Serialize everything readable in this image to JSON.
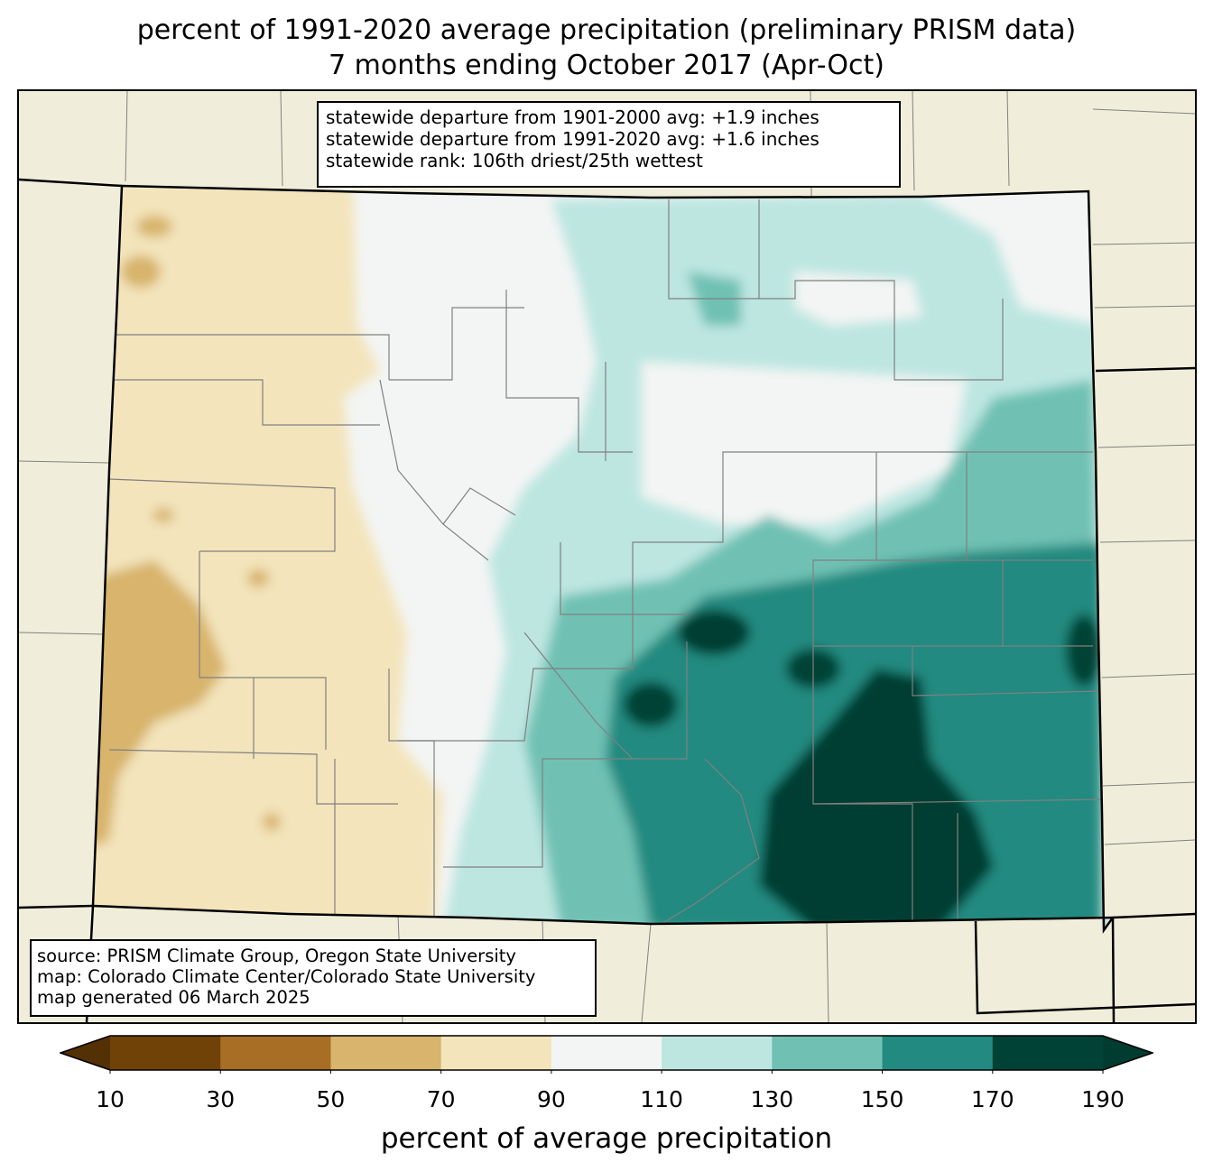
{
  "title": {
    "line1": "percent of 1991-2020 average precipitation (preliminary PRISM data)",
    "line2": "7 months ending October 2017 (Apr-Oct)"
  },
  "stats": {
    "line1": "statewide departure from 1901-2000 avg: +1.9 inches",
    "line2": "statewide departure from 1991-2020 avg: +1.6 inches",
    "line3": "statewide rank: 106th driest/25th wettest"
  },
  "source": {
    "line1": "source: PRISM Climate Group, Oregon State University",
    "line2": "map: Colorado Climate Center/Colorado State University",
    "line3": "map generated 06 March 2025"
  },
  "colorbar": {
    "label": "percent of average precipitation",
    "ticks": [
      "10",
      "30",
      "50",
      "70",
      "90",
      "110",
      "130",
      "150",
      "170",
      "190"
    ],
    "colors": [
      "#704208",
      "#a86e26",
      "#d8b46c",
      "#f3e4bb",
      "#f3f5f4",
      "#bde6e1",
      "#70c1b4",
      "#228a80",
      "#004236"
    ],
    "under_color": "#543005",
    "over_color": "#003c30"
  },
  "map": {
    "background_color": "#f0eedb",
    "state_outline_color": "#000000",
    "county_line_color": "#808080"
  }
}
